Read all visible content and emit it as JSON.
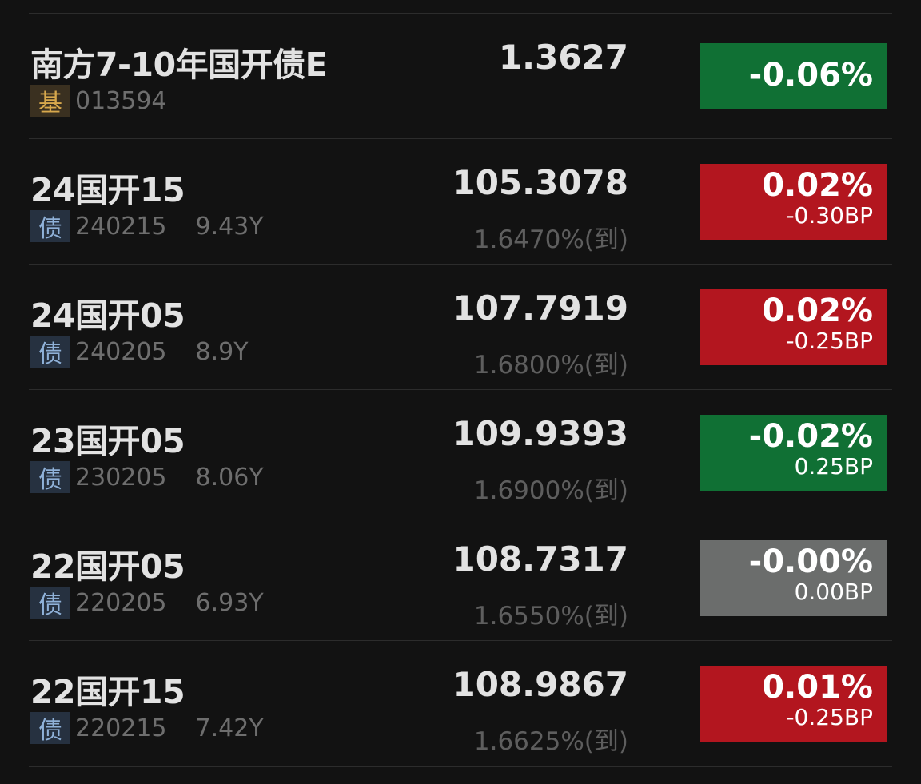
{
  "colors": {
    "up": "#b3161f",
    "down": "#107034",
    "flat": "#6b6d6c",
    "background": "#121212"
  },
  "rows": [
    {
      "name": "南方7-10年国开债E",
      "badge": "基",
      "code": "013594",
      "duration": "",
      "price": "1.3627",
      "yield": "",
      "change_pct": "-0.06%",
      "change_bp": "",
      "direction": "down"
    },
    {
      "name": "24国开15",
      "badge": "债",
      "code": "240215",
      "duration": "9.43Y",
      "price": "105.3078",
      "yield": "1.6470%(到)",
      "change_pct": "0.02%",
      "change_bp": "-0.30BP",
      "direction": "up"
    },
    {
      "name": "24国开05",
      "badge": "债",
      "code": "240205",
      "duration": "8.9Y",
      "price": "107.7919",
      "yield": "1.6800%(到)",
      "change_pct": "0.02%",
      "change_bp": "-0.25BP",
      "direction": "up"
    },
    {
      "name": "23国开05",
      "badge": "债",
      "code": "230205",
      "duration": "8.06Y",
      "price": "109.9393",
      "yield": "1.6900%(到)",
      "change_pct": "-0.02%",
      "change_bp": "0.25BP",
      "direction": "down"
    },
    {
      "name": "22国开05",
      "badge": "债",
      "code": "220205",
      "duration": "6.93Y",
      "price": "108.7317",
      "yield": "1.6550%(到)",
      "change_pct": "-0.00%",
      "change_bp": "0.00BP",
      "direction": "flat"
    },
    {
      "name": "22国开15",
      "badge": "债",
      "code": "220215",
      "duration": "7.42Y",
      "price": "108.9867",
      "yield": "1.6625%(到)",
      "change_pct": "0.01%",
      "change_bp": "-0.25BP",
      "direction": "up"
    }
  ]
}
